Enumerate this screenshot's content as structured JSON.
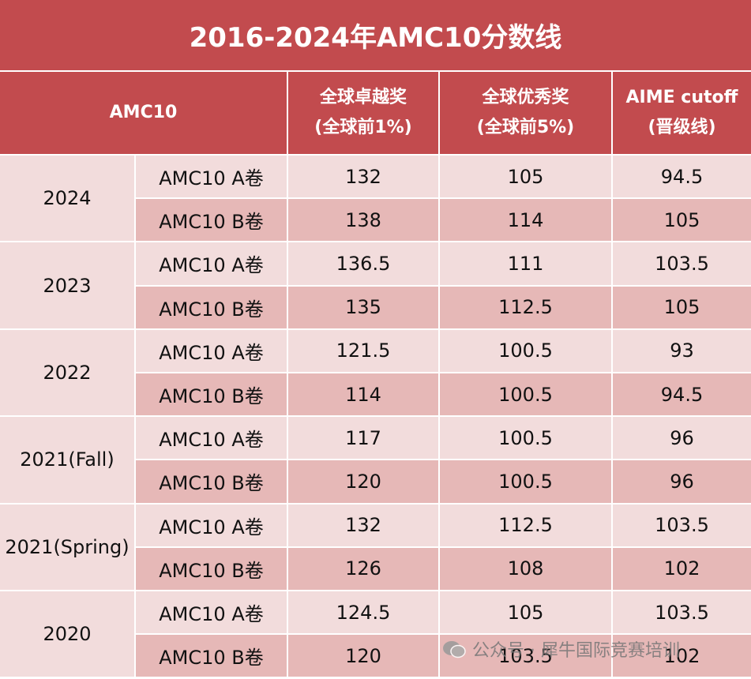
{
  "title": "2016-2024年AMC10分数线",
  "header": {
    "corner": "AMC10",
    "columns": [
      [
        "全球卓越奖",
        "(全球前1%)"
      ],
      [
        "全球优秀奖",
        "(全球前5%)"
      ],
      [
        "AIME cutoff",
        "(晋级线)"
      ]
    ]
  },
  "groups": [
    {
      "year": "2024",
      "rows": [
        {
          "paper": "AMC10 A卷",
          "values": [
            132,
            105,
            94.5
          ]
        },
        {
          "paper": "AMC10 B卷",
          "values": [
            138,
            114,
            105
          ]
        }
      ]
    },
    {
      "year": "2023",
      "rows": [
        {
          "paper": "AMC10 A卷",
          "values": [
            136.5,
            111,
            103.5
          ]
        },
        {
          "paper": "AMC10 B卷",
          "values": [
            135,
            112.5,
            105
          ]
        }
      ]
    },
    {
      "year": "2022",
      "rows": [
        {
          "paper": "AMC10 A卷",
          "values": [
            121.5,
            100.5,
            93
          ]
        },
        {
          "paper": "AMC10 B卷",
          "values": [
            114,
            100.5,
            94.5
          ]
        }
      ]
    },
    {
      "year": "2021(Fall)",
      "rows": [
        {
          "paper": "AMC10 A卷",
          "values": [
            117,
            100.5,
            96
          ]
        },
        {
          "paper": "AMC10 B卷",
          "values": [
            120,
            100.5,
            96
          ]
        }
      ]
    },
    {
      "year": "2021(Spring)",
      "rows": [
        {
          "paper": "AMC10 A卷",
          "values": [
            132,
            112.5,
            103.5
          ]
        },
        {
          "paper": "AMC10 B卷",
          "values": [
            126,
            108,
            102
          ]
        }
      ]
    },
    {
      "year": "2020",
      "rows": [
        {
          "paper": "AMC10 A卷",
          "values": [
            124.5,
            105,
            103.5
          ]
        },
        {
          "paper": "AMC10 B卷",
          "values": [
            120,
            103.5,
            102
          ]
        }
      ]
    }
  ],
  "watermark": "公众号 · 犀牛国际竞赛培训"
}
